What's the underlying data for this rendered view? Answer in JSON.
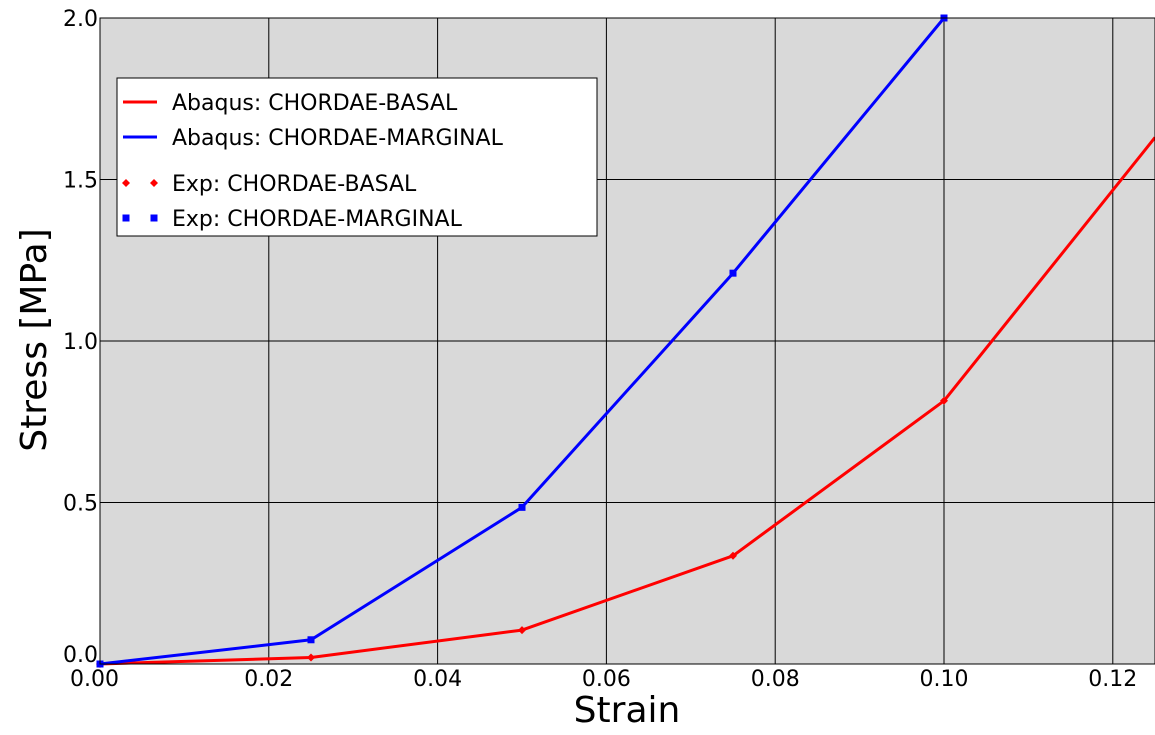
{
  "chart_data": {
    "type": "line",
    "xlabel": "Strain",
    "ylabel": "Stress [MPa]",
    "xlim": [
      0,
      0.125
    ],
    "ylim": [
      0,
      2.0
    ],
    "xticks": [
      "0.00",
      "0.02",
      "0.04",
      "0.06",
      "0.08",
      "0.10",
      "0.12"
    ],
    "yticks": [
      "0.0",
      "0.5",
      "1.0",
      "1.5",
      "2.0"
    ],
    "grid": true,
    "plot_background": "#d9d9d9",
    "legend_position": "top-left",
    "series": [
      {
        "name": "Abaqus: CHORDAE-BASAL",
        "style": "line",
        "color": "#ff0000",
        "x": [
          0.0,
          0.025,
          0.05,
          0.075,
          0.1,
          0.125
        ],
        "y": [
          0.0,
          0.02,
          0.105,
          0.335,
          0.815,
          1.63
        ]
      },
      {
        "name": "Abaqus: CHORDAE-MARGINAL",
        "style": "line",
        "color": "#0000ff",
        "x": [
          0.0,
          0.025,
          0.05,
          0.075,
          0.1
        ],
        "y": [
          0.0,
          0.075,
          0.485,
          1.21,
          2.0
        ]
      },
      {
        "name": "Exp: CHORDAE-BASAL",
        "style": "marker",
        "marker": "diamond",
        "color": "#ff0000",
        "x": [
          0.0,
          0.025,
          0.05,
          0.075,
          0.1
        ],
        "y": [
          0.0,
          0.02,
          0.105,
          0.335,
          0.815
        ]
      },
      {
        "name": "Exp: CHORDAE-MARGINAL",
        "style": "marker",
        "marker": "square",
        "color": "#0000ff",
        "x": [
          0.0,
          0.025,
          0.05,
          0.075,
          0.1
        ],
        "y": [
          0.0,
          0.075,
          0.485,
          1.21,
          2.0
        ]
      }
    ]
  }
}
